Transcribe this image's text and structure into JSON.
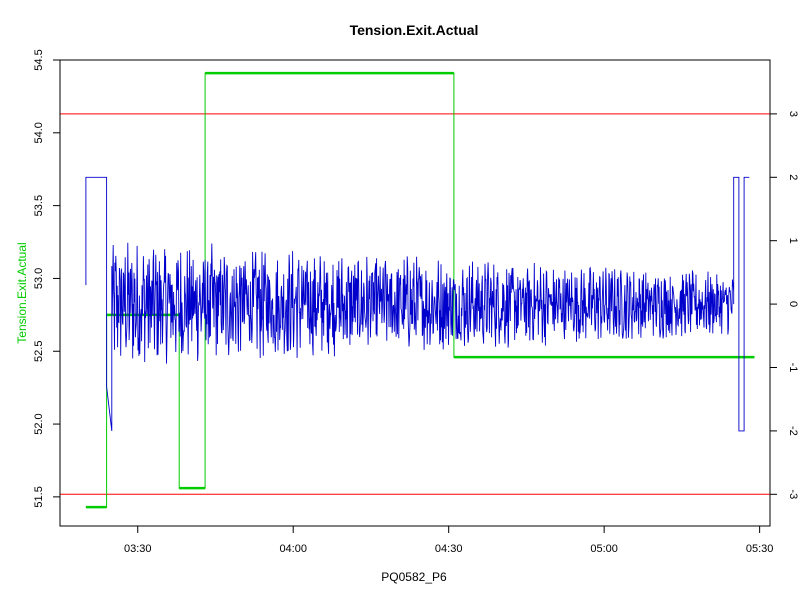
{
  "chart_data": {
    "type": "line",
    "title": "Tension.Exit.Actual",
    "xlabel": "PQ0582_P6",
    "ylabel_left": "Tension.Exit.Actual",
    "ylabel_right": "",
    "x_axis": {
      "unit": "time (HH:MM)",
      "range": [
        "03:15",
        "05:32"
      ],
      "ticks": [
        "03:30",
        "04:00",
        "04:30",
        "05:00",
        "05:30"
      ]
    },
    "y_axis_left": {
      "range": [
        51.3,
        54.5
      ],
      "ticks": [
        "51.5",
        "52.0",
        "52.5",
        "53.0",
        "53.5",
        "54.0",
        "54.5"
      ]
    },
    "y_axis_right": {
      "range": [
        -3.5,
        3.85
      ],
      "ticks": [
        "-3",
        "-2",
        "-1",
        "0",
        "1",
        "2",
        "3"
      ]
    },
    "reference_lines": [
      {
        "axis": "right",
        "value": 3.0,
        "color": "#ff0000"
      },
      {
        "axis": "right",
        "value": -3.0,
        "color": "#ff0000"
      }
    ],
    "series": [
      {
        "axis": "left",
        "color": "#00cc00",
        "style": "step",
        "points": [
          {
            "x": "03:20",
            "y": 51.43
          },
          {
            "x": "03:24",
            "y": 51.43
          },
          {
            "x": "03:24",
            "y": 52.75
          },
          {
            "x": "03:38",
            "y": 52.75
          },
          {
            "x": "03:38",
            "y": 51.56
          },
          {
            "x": "03:43",
            "y": 51.56
          },
          {
            "x": "03:43",
            "y": 54.41
          },
          {
            "x": "04:31",
            "y": 54.41
          },
          {
            "x": "04:31",
            "y": 52.46
          },
          {
            "x": "05:29",
            "y": 52.46
          }
        ]
      },
      {
        "axis": "right",
        "color": "#0000cc",
        "style": "noisy",
        "points": [
          {
            "x": "03:20",
            "y": 0.3
          },
          {
            "x": "03:20",
            "y": 2.0
          },
          {
            "x": "03:24",
            "y": 2.0
          },
          {
            "x": "03:24",
            "y": 1.5
          },
          {
            "x": "03:24",
            "y": -1.3
          },
          {
            "x": "03:25",
            "y": -2.0
          },
          {
            "x": "03:25",
            "y": 0.6
          }
        ],
        "noise": {
          "x_start": "03:25",
          "x_end": "05:25",
          "center": 0.0,
          "amplitude_start": 0.85,
          "amplitude_end": 0.4
        },
        "tail_points": [
          {
            "x": "05:25",
            "y": 0.0
          },
          {
            "x": "05:25",
            "y": 2.0
          },
          {
            "x": "05:26",
            "y": 2.0
          },
          {
            "x": "05:26",
            "y": -2.0
          },
          {
            "x": "05:27",
            "y": -2.0
          },
          {
            "x": "05:27",
            "y": 2.0
          },
          {
            "x": "05:28",
            "y": 2.0
          }
        ]
      }
    ],
    "grid": false,
    "legend": "none"
  }
}
